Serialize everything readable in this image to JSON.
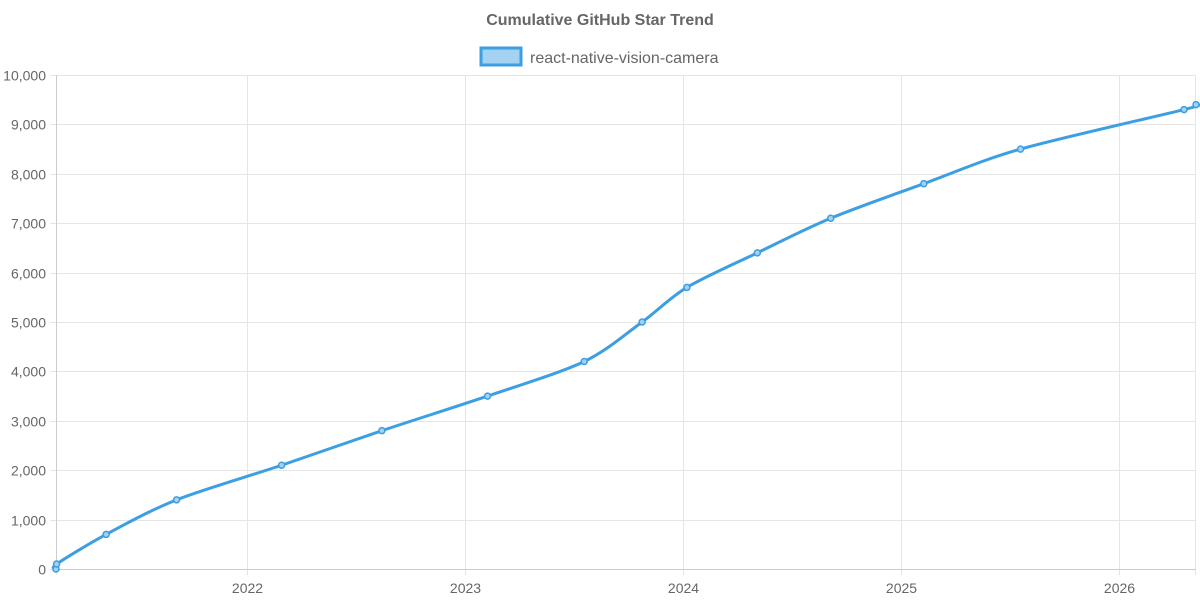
{
  "chart_data": {
    "type": "line",
    "title": "Cumulative GitHub Star Trend",
    "legend": {
      "position": "top-center"
    },
    "grid": true,
    "color": "#3b9fe2",
    "fill_color": "#a4d2f2",
    "xlim": [
      "2021-02-15",
      "2026-05-10"
    ],
    "ylim": [
      0,
      10000
    ],
    "x_ticks": [
      {
        "date": "2022-01-01",
        "label": "2022"
      },
      {
        "date": "2023-01-01",
        "label": "2023"
      },
      {
        "date": "2024-01-01",
        "label": "2024"
      },
      {
        "date": "2025-01-01",
        "label": "2025"
      },
      {
        "date": "2026-01-01",
        "label": "2026"
      }
    ],
    "y_ticks": [
      "0",
      "1,000",
      "2,000",
      "3,000",
      "4,000",
      "5,000",
      "6,000",
      "7,000",
      "8,000",
      "9,000",
      "10,000"
    ],
    "y_tick_values": [
      0,
      1000,
      2000,
      3000,
      4000,
      5000,
      6000,
      7000,
      8000,
      9000,
      10000
    ],
    "series": [
      {
        "name": "react-native-vision-camera",
        "points": [
          {
            "x": "2021-02-15",
            "y": 0
          },
          {
            "x": "2021-02-16",
            "y": 100
          },
          {
            "x": "2021-05-10",
            "y": 700
          },
          {
            "x": "2021-09-05",
            "y": 1400
          },
          {
            "x": "2022-02-28",
            "y": 2100
          },
          {
            "x": "2022-08-15",
            "y": 2800
          },
          {
            "x": "2023-02-08",
            "y": 3500
          },
          {
            "x": "2023-07-20",
            "y": 4200
          },
          {
            "x": "2023-10-25",
            "y": 5000
          },
          {
            "x": "2024-01-08",
            "y": 5700
          },
          {
            "x": "2024-05-05",
            "y": 6400
          },
          {
            "x": "2024-09-05",
            "y": 7100
          },
          {
            "x": "2025-02-08",
            "y": 7800
          },
          {
            "x": "2025-07-20",
            "y": 8500
          },
          {
            "x": "2026-04-20",
            "y": 9300
          },
          {
            "x": "2026-05-10",
            "y": 9400
          }
        ]
      }
    ]
  }
}
